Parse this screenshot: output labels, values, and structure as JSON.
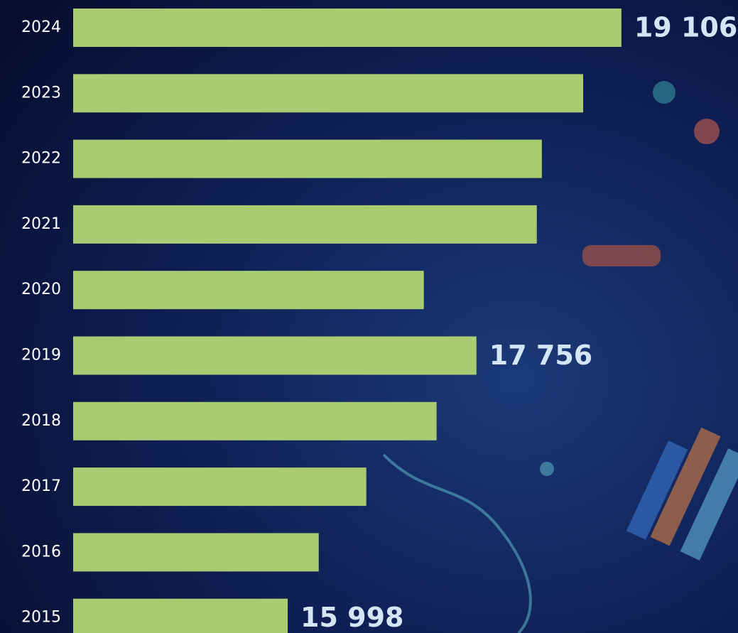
{
  "chart_data": {
    "type": "bar",
    "orientation": "horizontal",
    "categories": [
      "2024",
      "2023",
      "2022",
      "2021",
      "2020",
      "2019",
      "2018",
      "2017",
      "2016",
      "2015"
    ],
    "values": [
      19106,
      18750,
      18365,
      18318,
      17266,
      17756,
      17385,
      16730,
      16287,
      15998
    ],
    "value_labels": [
      "19 106",
      null,
      null,
      null,
      null,
      "17 756",
      null,
      null,
      null,
      "15 998"
    ],
    "color": "#a9cc73",
    "xlim": [
      14000,
      20000
    ]
  }
}
